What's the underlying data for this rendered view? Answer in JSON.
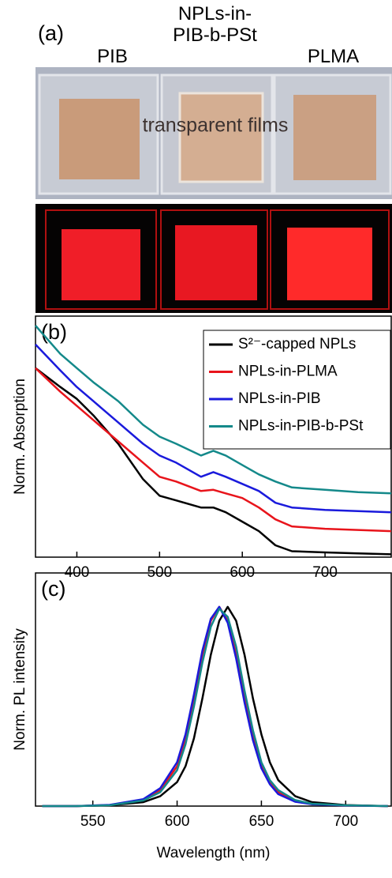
{
  "photo_panel": {
    "panel_label": "(a)",
    "column_labels": [
      "PIB",
      "NPLs-in-PIB-b-PSt",
      "PLMA"
    ],
    "photo_text": "transparent films"
  },
  "chart_data": [
    {
      "type": "line",
      "panel_label": "(b)",
      "ylabel": "Norm. Absorption",
      "xlim": [
        350,
        780
      ],
      "xticks": [
        400,
        500,
        600,
        700
      ],
      "ylim": [
        0,
        1.02
      ],
      "legend": "upper right",
      "x": [
        350,
        380,
        400,
        420,
        450,
        480,
        500,
        520,
        550,
        565,
        580,
        600,
        620,
        640,
        660,
        700,
        740,
        780
      ],
      "series": [
        {
          "name": "S²⁻-capped NPLs",
          "color": "#000000",
          "values": [
            0.8,
            0.72,
            0.67,
            0.6,
            0.48,
            0.33,
            0.26,
            0.24,
            0.21,
            0.21,
            0.19,
            0.15,
            0.11,
            0.05,
            0.025,
            0.02,
            0.016,
            0.012
          ]
        },
        {
          "name": "NPLs-in-PLMA",
          "color": "#e8141b",
          "values": [
            0.8,
            0.7,
            0.64,
            0.58,
            0.49,
            0.4,
            0.34,
            0.32,
            0.28,
            0.285,
            0.27,
            0.25,
            0.21,
            0.16,
            0.13,
            0.12,
            0.115,
            0.11
          ]
        },
        {
          "name": "NPLs-in-PIB",
          "color": "#1a1adc",
          "values": [
            0.9,
            0.79,
            0.72,
            0.66,
            0.57,
            0.48,
            0.43,
            0.4,
            0.34,
            0.36,
            0.34,
            0.31,
            0.28,
            0.23,
            0.21,
            0.2,
            0.195,
            0.19
          ]
        },
        {
          "name": "NPLs-in-PIB-b-PSt",
          "color": "#14898a",
          "values": [
            0.98,
            0.86,
            0.8,
            0.74,
            0.66,
            0.56,
            0.51,
            0.48,
            0.43,
            0.45,
            0.43,
            0.39,
            0.35,
            0.32,
            0.295,
            0.285,
            0.275,
            0.27
          ]
        }
      ]
    },
    {
      "type": "line",
      "panel_label": "(c)",
      "xlabel": "Wavelength (nm)",
      "ylabel": "Norm. PL intensity",
      "xlim": [
        516,
        727
      ],
      "xticks": [
        550,
        600,
        650,
        700
      ],
      "ylim": [
        0,
        1.17
      ],
      "x": [
        520,
        540,
        560,
        580,
        590,
        600,
        605,
        610,
        615,
        620,
        625,
        630,
        635,
        640,
        645,
        650,
        655,
        660,
        670,
        680,
        700,
        725
      ],
      "series": [
        {
          "name": "S²⁻-capped NPLs",
          "color": "#000000",
          "values": [
            0,
            0,
            0.004,
            0.02,
            0.05,
            0.12,
            0.2,
            0.34,
            0.54,
            0.76,
            0.93,
            1,
            0.93,
            0.76,
            0.54,
            0.36,
            0.22,
            0.13,
            0.05,
            0.02,
            0.005,
            0
          ]
        },
        {
          "name": "NPLs-in-PLMA",
          "color": "#e8141b",
          "values": [
            0,
            0,
            0.005,
            0.03,
            0.08,
            0.2,
            0.34,
            0.54,
            0.76,
            0.93,
            1,
            0.93,
            0.76,
            0.54,
            0.35,
            0.2,
            0.12,
            0.07,
            0.025,
            0.01,
            0.003,
            0
          ]
        },
        {
          "name": "NPLs-in-PIB",
          "color": "#1a1adc",
          "values": [
            0,
            0,
            0.006,
            0.035,
            0.09,
            0.22,
            0.36,
            0.56,
            0.78,
            0.94,
            1,
            0.92,
            0.74,
            0.52,
            0.33,
            0.19,
            0.11,
            0.06,
            0.022,
            0.009,
            0.003,
            0
          ]
        },
        {
          "name": "NPLs-in-PIB-b-PSt",
          "color": "#14898a",
          "values": [
            0,
            0,
            0.004,
            0.028,
            0.07,
            0.18,
            0.31,
            0.5,
            0.72,
            0.9,
            0.99,
            0.95,
            0.8,
            0.58,
            0.38,
            0.22,
            0.13,
            0.08,
            0.03,
            0.012,
            0.004,
            0
          ]
        }
      ]
    }
  ]
}
